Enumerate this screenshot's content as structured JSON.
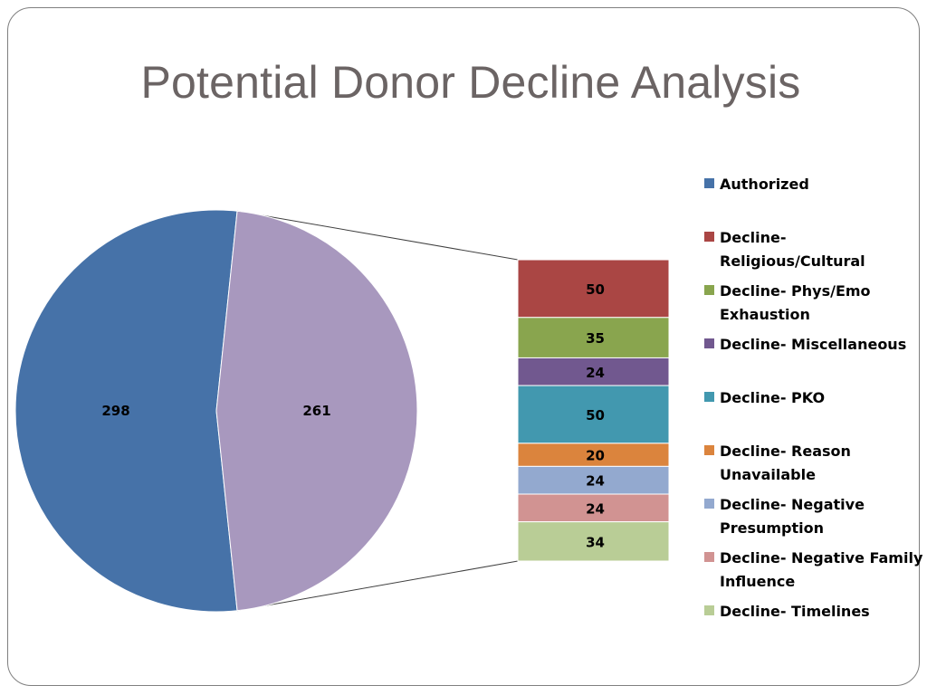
{
  "slide": {
    "title": "Potential Donor Decline Analysis"
  },
  "chart_data": {
    "type": "bar-of-pie",
    "pie": {
      "slices": [
        {
          "value": 298,
          "color": "#4672A8"
        },
        {
          "value": 261,
          "color": "#A898BE"
        }
      ]
    },
    "bar": {
      "segments": [
        {
          "value": 50,
          "color": "#AA4644"
        },
        {
          "value": 35,
          "color": "#89A54E"
        },
        {
          "value": 24,
          "color": "#71588F"
        },
        {
          "value": 50,
          "color": "#4298AF"
        },
        {
          "value": 20,
          "color": "#DB843D"
        },
        {
          "value": 24,
          "color": "#93A9CF"
        },
        {
          "value": 24,
          "color": "#D19392"
        },
        {
          "value": 34,
          "color": "#B9CD96"
        }
      ]
    },
    "legend": {
      "position": "right",
      "items": [
        {
          "lines": [
            "Authorized"
          ],
          "color": "#4672A8"
        },
        {
          "lines": [
            "Decline-",
            "Religious/Cultural"
          ],
          "color": "#AA4644"
        },
        {
          "lines": [
            "Decline- Phys/Emo",
            "Exhaustion"
          ],
          "color": "#89A54E"
        },
        {
          "lines": [
            "Decline- Miscellaneous"
          ],
          "color": "#71588F"
        },
        {
          "lines": [
            "Decline- PKO"
          ],
          "color": "#4298AF"
        },
        {
          "lines": [
            "Decline- Reason",
            "Unavailable"
          ],
          "color": "#DB843D"
        },
        {
          "lines": [
            "Decline- Negative",
            "Presumption"
          ],
          "color": "#93A9CF"
        },
        {
          "lines": [
            "Decline- Negative Family",
            "Influence"
          ],
          "color": "#D19392"
        },
        {
          "lines": [
            "Decline- Timelines"
          ],
          "color": "#B9CD96"
        }
      ]
    }
  }
}
